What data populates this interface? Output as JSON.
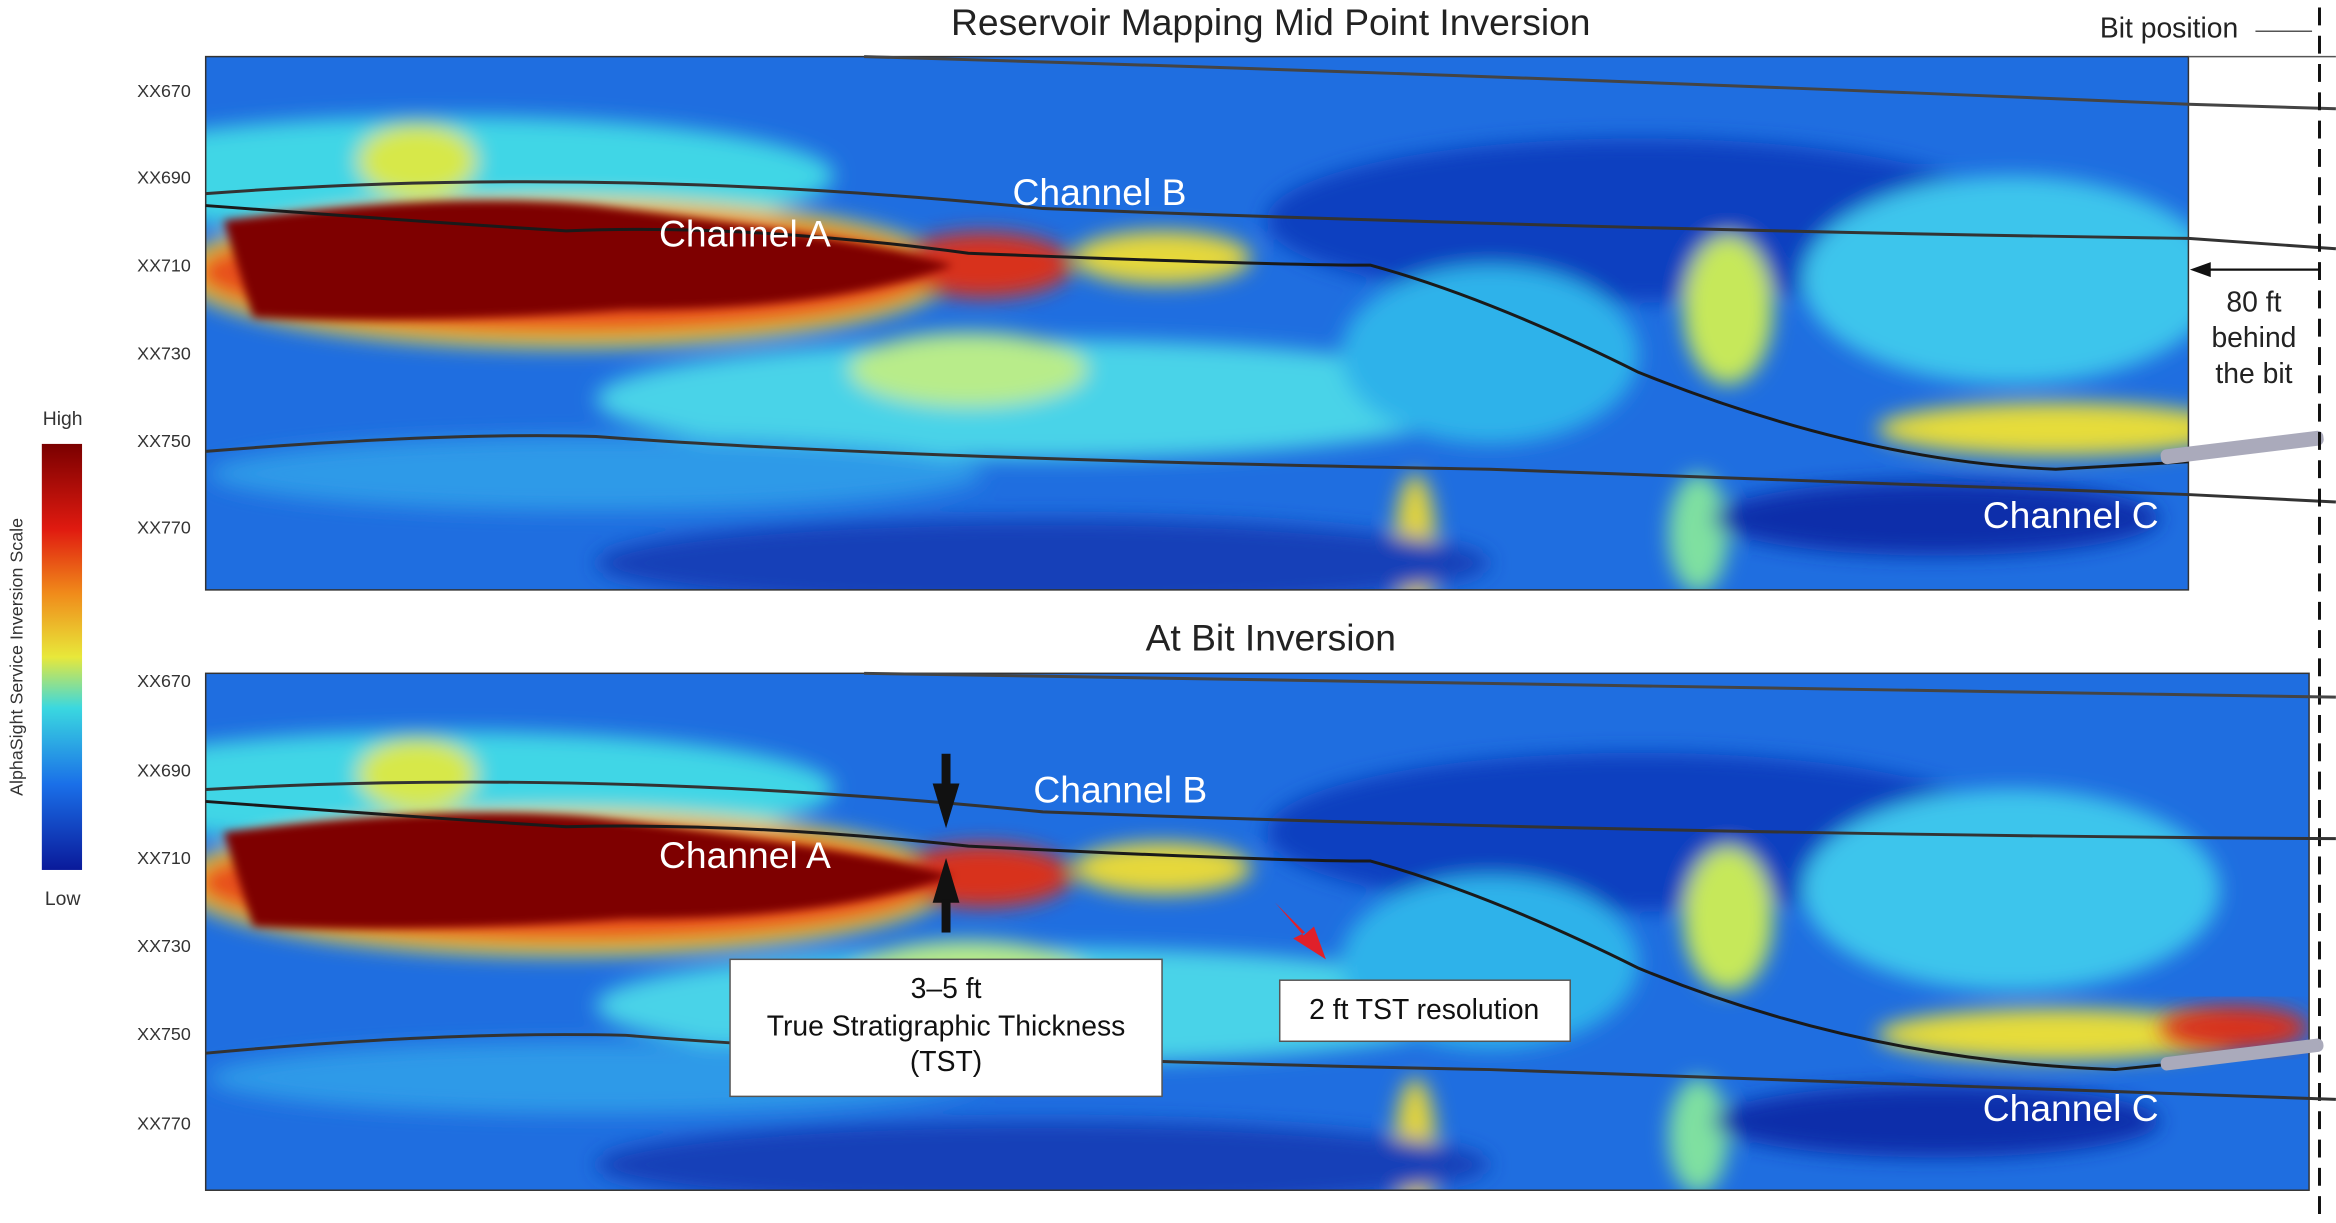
{
  "panels": [
    {
      "title": "Reservoir Mapping Mid Point Inversion",
      "depth_labels": [
        "XX670",
        "XX690",
        "XX710",
        "XX730",
        "XX750",
        "XX770"
      ],
      "channels": [
        "Channel A",
        "Channel B",
        "Channel C"
      ]
    },
    {
      "title": "At Bit Inversion",
      "depth_labels": [
        "XX670",
        "XX690",
        "XX710",
        "XX730",
        "XX750",
        "XX770"
      ],
      "channels": [
        "Channel A",
        "Channel B",
        "Channel C"
      ]
    }
  ],
  "bit_position": "Bit position",
  "behind_bit": [
    "80 ft",
    "behind",
    "the bit"
  ],
  "scale": {
    "title": "AlphaSight Service Inversion Scale",
    "high": "High",
    "low": "Low"
  },
  "callouts": {
    "thickness": [
      "3–5 ft",
      "True Stratigraphic Thickness",
      "(TST)"
    ],
    "resolution": "2 ft TST resolution"
  }
}
